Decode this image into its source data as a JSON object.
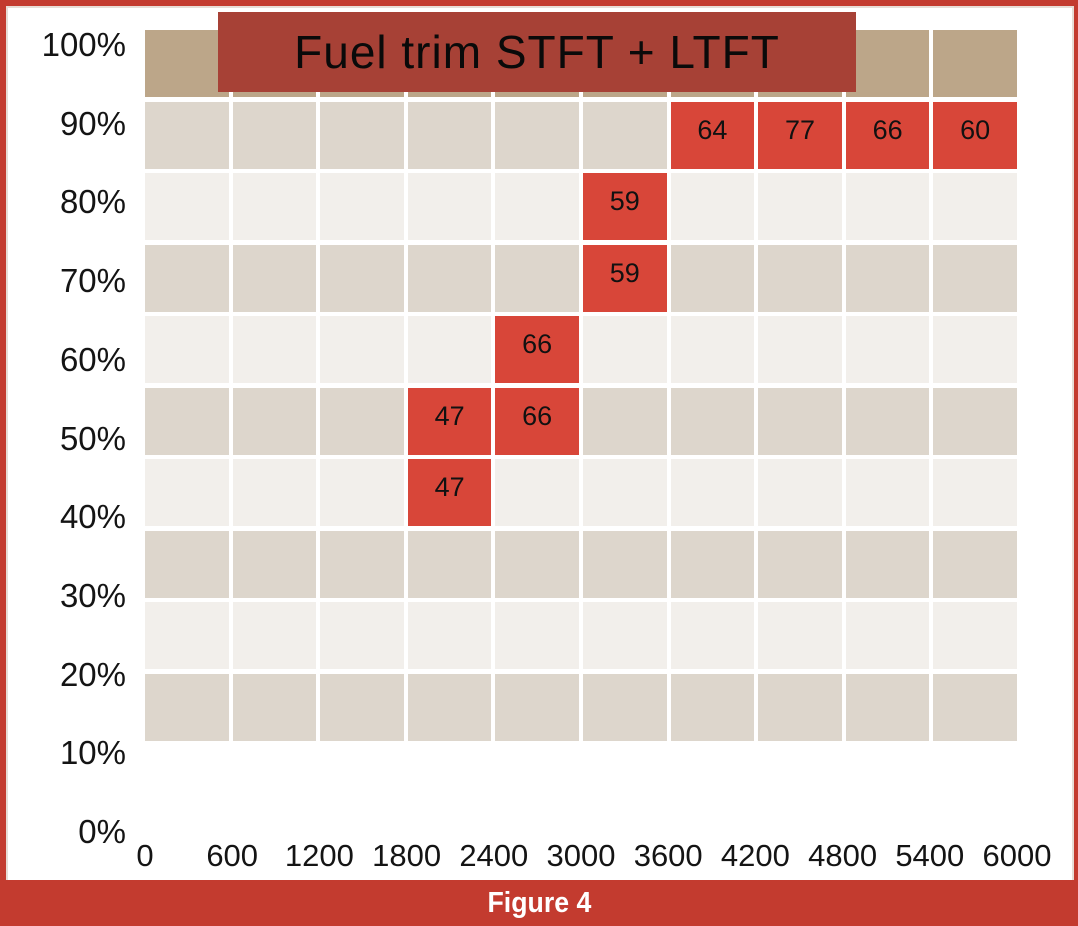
{
  "figure": {
    "caption": "Figure 4"
  },
  "colors": {
    "frame_red": "#C33B2F",
    "banner_red": "#A74136",
    "cell_red": "#D84639",
    "tan": "#BCA689",
    "stripe_dark": "#DDD6CC",
    "stripe_light": "#F2EFEB"
  },
  "chart_data": {
    "type": "heatmap",
    "title": "Fuel trim STFT + LTFT",
    "xlabel": "",
    "ylabel": "",
    "x_tick_labels": [
      "0",
      "600",
      "1200",
      "1800",
      "2400",
      "3000",
      "3600",
      "4200",
      "4800",
      "5400",
      "6000"
    ],
    "y_tick_labels": [
      "100%",
      "90%",
      "80%",
      "70%",
      "60%",
      "50%",
      "40%",
      "30%",
      "20%",
      "10%",
      "0%"
    ],
    "x_range": [
      0,
      6000
    ],
    "y_range_percent": [
      0,
      100
    ],
    "grid": "white gutters between cells, alternating row shading, no legend",
    "row_styles": [
      "tan",
      "dark",
      "light",
      "dark",
      "light",
      "dark",
      "light",
      "dark",
      "light",
      "dark"
    ],
    "grid_values": [
      [
        null,
        null,
        null,
        null,
        null,
        null,
        null,
        null,
        null,
        null
      ],
      [
        null,
        null,
        null,
        null,
        null,
        null,
        64,
        77,
        66,
        60
      ],
      [
        null,
        null,
        null,
        null,
        null,
        59,
        null,
        null,
        null,
        null
      ],
      [
        null,
        null,
        null,
        null,
        null,
        59,
        null,
        null,
        null,
        null
      ],
      [
        null,
        null,
        null,
        null,
        66,
        null,
        null,
        null,
        null,
        null
      ],
      [
        null,
        null,
        null,
        47,
        66,
        null,
        null,
        null,
        null,
        null
      ],
      [
        null,
        null,
        null,
        47,
        null,
        null,
        null,
        null,
        null,
        null
      ],
      [
        null,
        null,
        null,
        null,
        null,
        null,
        null,
        null,
        null,
        null
      ],
      [
        null,
        null,
        null,
        null,
        null,
        null,
        null,
        null,
        null,
        null
      ],
      [
        null,
        null,
        null,
        null,
        null,
        null,
        null,
        null,
        null,
        null
      ]
    ],
    "points": [
      {
        "value": 64,
        "rpm": "3600-4200",
        "load": "80-90%"
      },
      {
        "value": 77,
        "rpm": "4200-4800",
        "load": "80-90%"
      },
      {
        "value": 66,
        "rpm": "4800-5400",
        "load": "80-90%"
      },
      {
        "value": 60,
        "rpm": "5400-6000",
        "load": "80-90%"
      },
      {
        "value": 59,
        "rpm": "3000-3600",
        "load": "70-80%"
      },
      {
        "value": 59,
        "rpm": "3000-3600",
        "load": "60-70%"
      },
      {
        "value": 66,
        "rpm": "2400-3000",
        "load": "50-60%"
      },
      {
        "value": 47,
        "rpm": "1800-2400",
        "load": "40-50%"
      },
      {
        "value": 66,
        "rpm": "2400-3000",
        "load": "40-50%"
      },
      {
        "value": 47,
        "rpm": "1800-2400",
        "load": "30-40%"
      }
    ]
  }
}
